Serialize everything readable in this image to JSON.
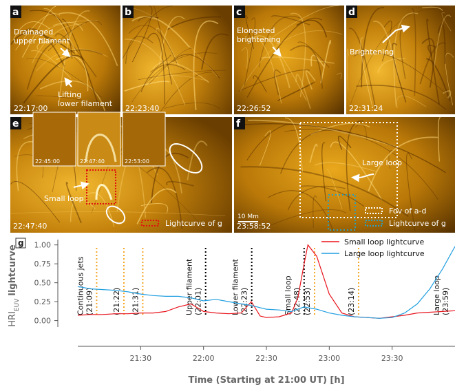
{
  "panels": [
    {
      "label": "a",
      "timestamp": "22:17:00",
      "notes": [
        [
          "Drainaged",
          "upper filament"
        ],
        [
          "Lifting",
          "lower filament"
        ]
      ]
    },
    {
      "label": "b",
      "timestamp": "22:23:40"
    },
    {
      "label": "c",
      "timestamp": "22:26:52",
      "notes": [
        [
          "Elongated",
          "brightening"
        ]
      ]
    },
    {
      "label": "d",
      "timestamp": "22:31:24",
      "notes": [
        [
          "Brightening"
        ]
      ]
    },
    {
      "label": "e",
      "timestamp": "22:47:40",
      "insets": [
        "22:45:00",
        "22:47:40",
        "22:53:00"
      ],
      "notes": [
        [
          "Small loop"
        ]
      ],
      "legend": [
        "Lightcurve of g"
      ]
    },
    {
      "label": "f",
      "timestamp": "23:58:52",
      "notes": [
        [
          "Large loop"
        ]
      ],
      "scale_bar": "10 Mm",
      "legend": [
        "Fov of a-d",
        "Lightcurve of g"
      ]
    }
  ],
  "chart_data": {
    "type": "line",
    "label": "g",
    "xlabel": "Time (Starting at 21:00 UT) [h]",
    "ylabel": {
      "base": "HRI",
      "subscript": "EUV",
      "rest": "lightcurve"
    },
    "x": [
      0,
      0.1,
      0.2,
      0.3,
      0.4,
      0.5,
      0.6,
      0.7,
      0.8,
      0.9,
      1.0,
      1.1,
      1.2,
      1.3,
      1.38,
      1.45,
      1.5,
      1.6,
      1.7,
      1.75,
      1.8,
      1.83,
      1.9,
      2.0,
      2.1,
      2.2,
      2.3,
      2.4,
      2.5,
      2.6,
      2.7,
      2.8,
      2.9,
      3.0
    ],
    "series": [
      {
        "name": "Small loop lightcurve",
        "color": "#e8141c",
        "values": [
          0.07,
          0.08,
          0.08,
          0.09,
          0.09,
          0.1,
          0.1,
          0.12,
          0.18,
          0.22,
          0.12,
          0.1,
          0.09,
          0.1,
          0.25,
          0.06,
          0.04,
          0.05,
          0.1,
          0.3,
          0.75,
          1.0,
          0.85,
          0.35,
          0.1,
          0.05,
          0.04,
          0.03,
          0.05,
          0.07,
          0.1,
          0.11,
          0.12,
          0.13
        ]
      },
      {
        "name": "Large loop lightcurve",
        "color": "#1f9ee0",
        "values": [
          0.45,
          0.42,
          0.41,
          0.4,
          0.38,
          0.35,
          0.33,
          0.32,
          0.32,
          0.3,
          0.26,
          0.28,
          0.25,
          0.22,
          0.2,
          0.17,
          0.15,
          0.14,
          0.12,
          0.15,
          0.18,
          0.17,
          0.15,
          0.1,
          0.07,
          0.05,
          0.04,
          0.03,
          0.04,
          0.1,
          0.22,
          0.42,
          0.68,
          0.98
        ]
      }
    ],
    "xlim": [
      0,
      3
    ],
    "xticks": [
      {
        "value": 0.5,
        "label": "21:30"
      },
      {
        "value": 1,
        "label": "22:00"
      },
      {
        "value": 1.5,
        "label": "22:30"
      },
      {
        "value": 2,
        "label": "23:00"
      },
      {
        "value": 2.5,
        "label": "23:30"
      }
    ],
    "ylim": [
      -0.34,
      1.07
    ],
    "yticks": [
      {
        "value": 0,
        "label": "0.00"
      },
      0.25,
      {
        "value": 0.5,
        "label": "0.50"
      },
      0.75,
      {
        "value": 1,
        "label": "1.00"
      }
    ],
    "legend": "upper right",
    "events": [
      {
        "x": 0.15,
        "label": "Continuous jets",
        "time": "(21:09)",
        "color": "#f5a623"
      },
      {
        "x": 0.3667,
        "time": "(21:22)",
        "color": "#f5a623"
      },
      {
        "x": 0.5167,
        "time": "(21:31)",
        "color": "#f5a623"
      },
      {
        "x": 1.0167,
        "label": "Upper filament",
        "time": "(22:01)",
        "color": "#000000"
      },
      {
        "x": 1.3833,
        "label": "Lower filament",
        "time": "(22:23)",
        "color": "#000000"
      },
      {
        "x": 1.8,
        "label": "Small loop",
        "time": "(22:48)",
        "color": "#000000"
      },
      {
        "x": 1.8833,
        "time": "(22:53)",
        "color": "#f5a623"
      },
      {
        "x": 2.2333,
        "time": "(23:14)",
        "color": "#f5a623"
      },
      {
        "x": 2.9833,
        "label": "Large loop",
        "time": "(23:59)",
        "line": false
      }
    ]
  }
}
